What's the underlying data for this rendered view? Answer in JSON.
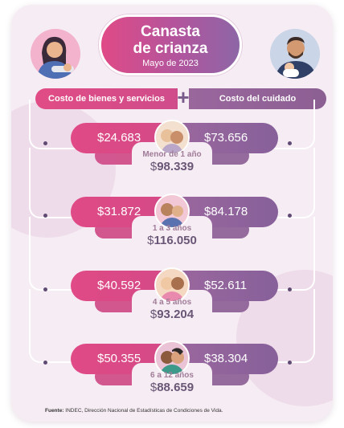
{
  "title": {
    "line1": "Canasta",
    "line2": "de crianza",
    "date": "Mayo de 2023"
  },
  "categories": {
    "left": "Costo de bienes y servicios",
    "plus": "+",
    "right": "Costo del cuidado"
  },
  "rows": [
    {
      "goods": "$24.683",
      "care": "$73.656",
      "age": "Menor de 1 año",
      "currency": "$",
      "total": "98.339"
    },
    {
      "goods": "$31.872",
      "care": "$84.178",
      "age": "1 a 3 años",
      "currency": "$",
      "total": "116.050"
    },
    {
      "goods": "$40.592",
      "care": "$52.611",
      "age": "4 a 5 años",
      "currency": "$",
      "total": "93.204"
    },
    {
      "goods": "$50.355",
      "care": "$38.304",
      "age": "6 a 12 años",
      "currency": "$",
      "total": "88.659"
    }
  ],
  "footer": {
    "label": "Fuente:",
    "text": "INDEC, Dirección Nacional de Estadísticas de Condiciones de Vida."
  },
  "colors": {
    "pink": "#e04a86",
    "purple": "#8c5f96",
    "background": "#f6ecf3"
  }
}
